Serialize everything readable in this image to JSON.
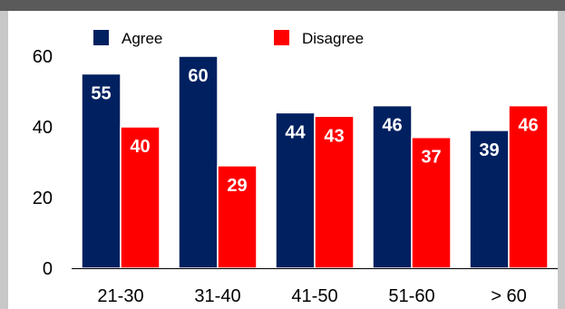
{
  "chart_data": {
    "type": "bar",
    "categories": [
      "21-30",
      "31-40",
      "41-50",
      "51-60",
      "> 60"
    ],
    "series": [
      {
        "name": "Agree",
        "values": [
          55,
          60,
          44,
          46,
          39
        ],
        "color": "#002060"
      },
      {
        "name": "Disagree",
        "values": [
          40,
          29,
          43,
          37,
          46
        ],
        "color": "#ff0000"
      }
    ],
    "yticks": [
      0,
      20,
      40,
      60
    ],
    "ylim": [
      0,
      64
    ],
    "legend_position": "top",
    "grid": false
  }
}
